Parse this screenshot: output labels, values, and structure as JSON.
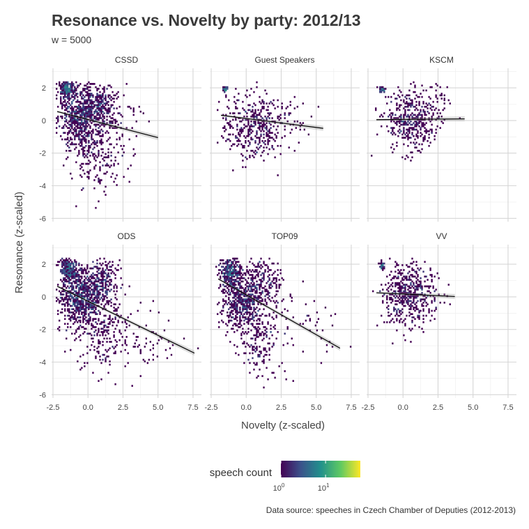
{
  "chart_data": {
    "type": "heatmap",
    "title": "Resonance vs. Novelty by party: 2012/13",
    "subtitle": "w = 5000",
    "xlabel": "Novelty (z-scaled)",
    "ylabel": "Resonance (z-scaled)",
    "caption": "Data source: speeches in Czech Chamber of Deputies (2012-2013)",
    "xlim": [
      -2.6,
      8.1
    ],
    "ylim": [
      -6.2,
      3.2
    ],
    "x_ticks": [
      -2.5,
      0,
      2.5,
      5,
      7.5
    ],
    "x_tick_labels": [
      "-2.5",
      "0.0",
      "2.5",
      "5.0",
      "7.5"
    ],
    "y_ticks": [
      -6,
      -4,
      -2,
      0,
      2
    ],
    "y_tick_labels": [
      "-6",
      "-4",
      "-2",
      "0",
      "2"
    ],
    "grid": true,
    "legend": {
      "title": "speech count",
      "position": "bottom",
      "scale": "log10",
      "colormap": [
        "#440154",
        "#3b528b",
        "#21908c",
        "#5ec962",
        "#fde725"
      ],
      "breaks": [
        {
          "base": "10",
          "exp": "0",
          "value": 1
        },
        {
          "base": "10",
          "exp": "1",
          "value": 10
        }
      ],
      "max": 60
    },
    "facets": [
      {
        "name": "CSSD",
        "trend": {
          "x0": -2.2,
          "y0": 0.55,
          "x1": 5.0,
          "y1": -1.05
        },
        "clusters": [
          {
            "cx": -1.5,
            "cy": 1.9,
            "sx": 0.25,
            "sy": 0.3,
            "n": 220
          },
          {
            "cx": -0.6,
            "cy": 0.2,
            "sx": 0.8,
            "sy": 1.0,
            "n": 700
          },
          {
            "cx": 0.9,
            "cy": 0.9,
            "sx": 0.55,
            "sy": 0.8,
            "n": 240
          },
          {
            "cx": 0.6,
            "cy": -2.2,
            "sx": 0.9,
            "sy": 1.2,
            "n": 180
          },
          {
            "cx": 2.0,
            "cy": 0.0,
            "sx": 0.8,
            "sy": 1.2,
            "n": 80
          }
        ]
      },
      {
        "name": "Guest Speakers",
        "trend": {
          "x0": -1.8,
          "y0": 0.32,
          "x1": 5.5,
          "y1": -0.48
        },
        "clusters": [
          {
            "cx": -1.5,
            "cy": 1.9,
            "sx": 0.08,
            "sy": 0.08,
            "n": 40
          },
          {
            "cx": 0.5,
            "cy": -0.3,
            "sx": 1.1,
            "sy": 0.95,
            "n": 420
          },
          {
            "cx": 3.0,
            "cy": 0.2,
            "sx": 0.9,
            "sy": 0.9,
            "n": 40
          }
        ]
      },
      {
        "name": "KSCM",
        "trend": {
          "x0": -1.9,
          "y0": 0.05,
          "x1": 4.4,
          "y1": 0.1
        },
        "clusters": [
          {
            "cx": -1.5,
            "cy": 1.9,
            "sx": 0.08,
            "sy": 0.1,
            "n": 40
          },
          {
            "cx": 0.6,
            "cy": 0.2,
            "sx": 1.0,
            "sy": 1.0,
            "n": 440
          },
          {
            "cx": 2.5,
            "cy": 1.2,
            "sx": 0.6,
            "sy": 0.8,
            "n": 40
          }
        ]
      },
      {
        "name": "ODS",
        "trend": {
          "x0": -2.2,
          "y0": 0.65,
          "x1": 7.6,
          "y1": -3.45
        },
        "clusters": [
          {
            "cx": -1.4,
            "cy": 1.7,
            "sx": 0.3,
            "sy": 0.4,
            "n": 260
          },
          {
            "cx": -0.5,
            "cy": 0.0,
            "sx": 0.8,
            "sy": 1.0,
            "n": 800
          },
          {
            "cx": 1.0,
            "cy": 1.0,
            "sx": 0.6,
            "sy": 0.8,
            "n": 260
          },
          {
            "cx": 1.2,
            "cy": -2.2,
            "sx": 1.0,
            "sy": 1.2,
            "n": 200
          },
          {
            "cx": 4.0,
            "cy": -2.8,
            "sx": 1.6,
            "sy": 1.0,
            "n": 60
          }
        ]
      },
      {
        "name": "TOP09",
        "trend": {
          "x0": -2.0,
          "y0": 1.1,
          "x1": 6.7,
          "y1": -3.15
        },
        "clusters": [
          {
            "cx": -1.2,
            "cy": 1.6,
            "sx": 0.35,
            "sy": 0.4,
            "n": 260
          },
          {
            "cx": -0.3,
            "cy": -0.1,
            "sx": 0.8,
            "sy": 1.0,
            "n": 640
          },
          {
            "cx": 1.4,
            "cy": 0.9,
            "sx": 0.7,
            "sy": 0.8,
            "n": 160
          },
          {
            "cx": 1.0,
            "cy": -2.5,
            "sx": 0.8,
            "sy": 1.3,
            "n": 180
          },
          {
            "cx": 4.0,
            "cy": -1.6,
            "sx": 1.3,
            "sy": 1.1,
            "n": 50
          }
        ]
      },
      {
        "name": "VV",
        "trend": {
          "x0": -1.9,
          "y0": 0.25,
          "x1": 3.7,
          "y1": 0.02
        },
        "clusters": [
          {
            "cx": -1.5,
            "cy": 1.9,
            "sx": 0.08,
            "sy": 0.1,
            "n": 40
          },
          {
            "cx": 0.3,
            "cy": 0.2,
            "sx": 0.95,
            "sy": 1.0,
            "n": 480
          },
          {
            "cx": 1.9,
            "cy": 0.6,
            "sx": 0.6,
            "sy": 0.8,
            "n": 40
          }
        ]
      }
    ]
  }
}
